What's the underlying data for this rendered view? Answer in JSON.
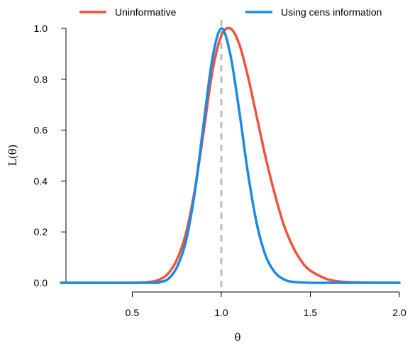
{
  "chart_data": {
    "type": "line",
    "title": "",
    "xlabel": "θ",
    "ylabel": "L(θ)",
    "xlim": [
      0.1,
      2.0
    ],
    "ylim": [
      0,
      1
    ],
    "xticks": [
      "0.5",
      "1.0",
      "1.5",
      "2.0"
    ],
    "yticks": [
      "0.0",
      "0.2",
      "0.4",
      "0.6",
      "0.8",
      "1.0"
    ],
    "grid": false,
    "legend_position": "top",
    "reference_line": {
      "x": 1.0,
      "style": "dashed",
      "color": "#bdbdbd"
    },
    "series": [
      {
        "name": "Uninformative",
        "color": "#f0533f",
        "x": [
          0.1,
          0.5,
          0.6,
          0.65,
          0.7,
          0.75,
          0.8,
          0.85,
          0.9,
          0.95,
          1.0,
          1.05,
          1.1,
          1.15,
          1.2,
          1.25,
          1.3,
          1.35,
          1.4,
          1.45,
          1.5,
          1.6,
          1.7,
          1.8,
          1.9,
          2.0
        ],
        "y": [
          0.0,
          0.0,
          0.004,
          0.012,
          0.035,
          0.09,
          0.19,
          0.36,
          0.59,
          0.83,
          0.97,
          1.0,
          0.94,
          0.81,
          0.65,
          0.49,
          0.35,
          0.23,
          0.145,
          0.085,
          0.048,
          0.013,
          0.003,
          0.001,
          0.0,
          0.0
        ]
      },
      {
        "name": "Using cens information",
        "color": "#1a8ae5",
        "x": [
          0.1,
          0.6,
          0.65,
          0.7,
          0.75,
          0.8,
          0.85,
          0.9,
          0.95,
          1.0,
          1.05,
          1.1,
          1.15,
          1.2,
          1.25,
          1.3,
          1.35,
          1.4,
          1.5,
          1.6,
          1.8,
          2.0
        ],
        "y": [
          0.0,
          0.0,
          0.003,
          0.014,
          0.06,
          0.16,
          0.35,
          0.62,
          0.88,
          1.0,
          0.9,
          0.68,
          0.43,
          0.23,
          0.105,
          0.042,
          0.014,
          0.004,
          0.0,
          0.0,
          0.0,
          0.0
        ]
      }
    ]
  }
}
